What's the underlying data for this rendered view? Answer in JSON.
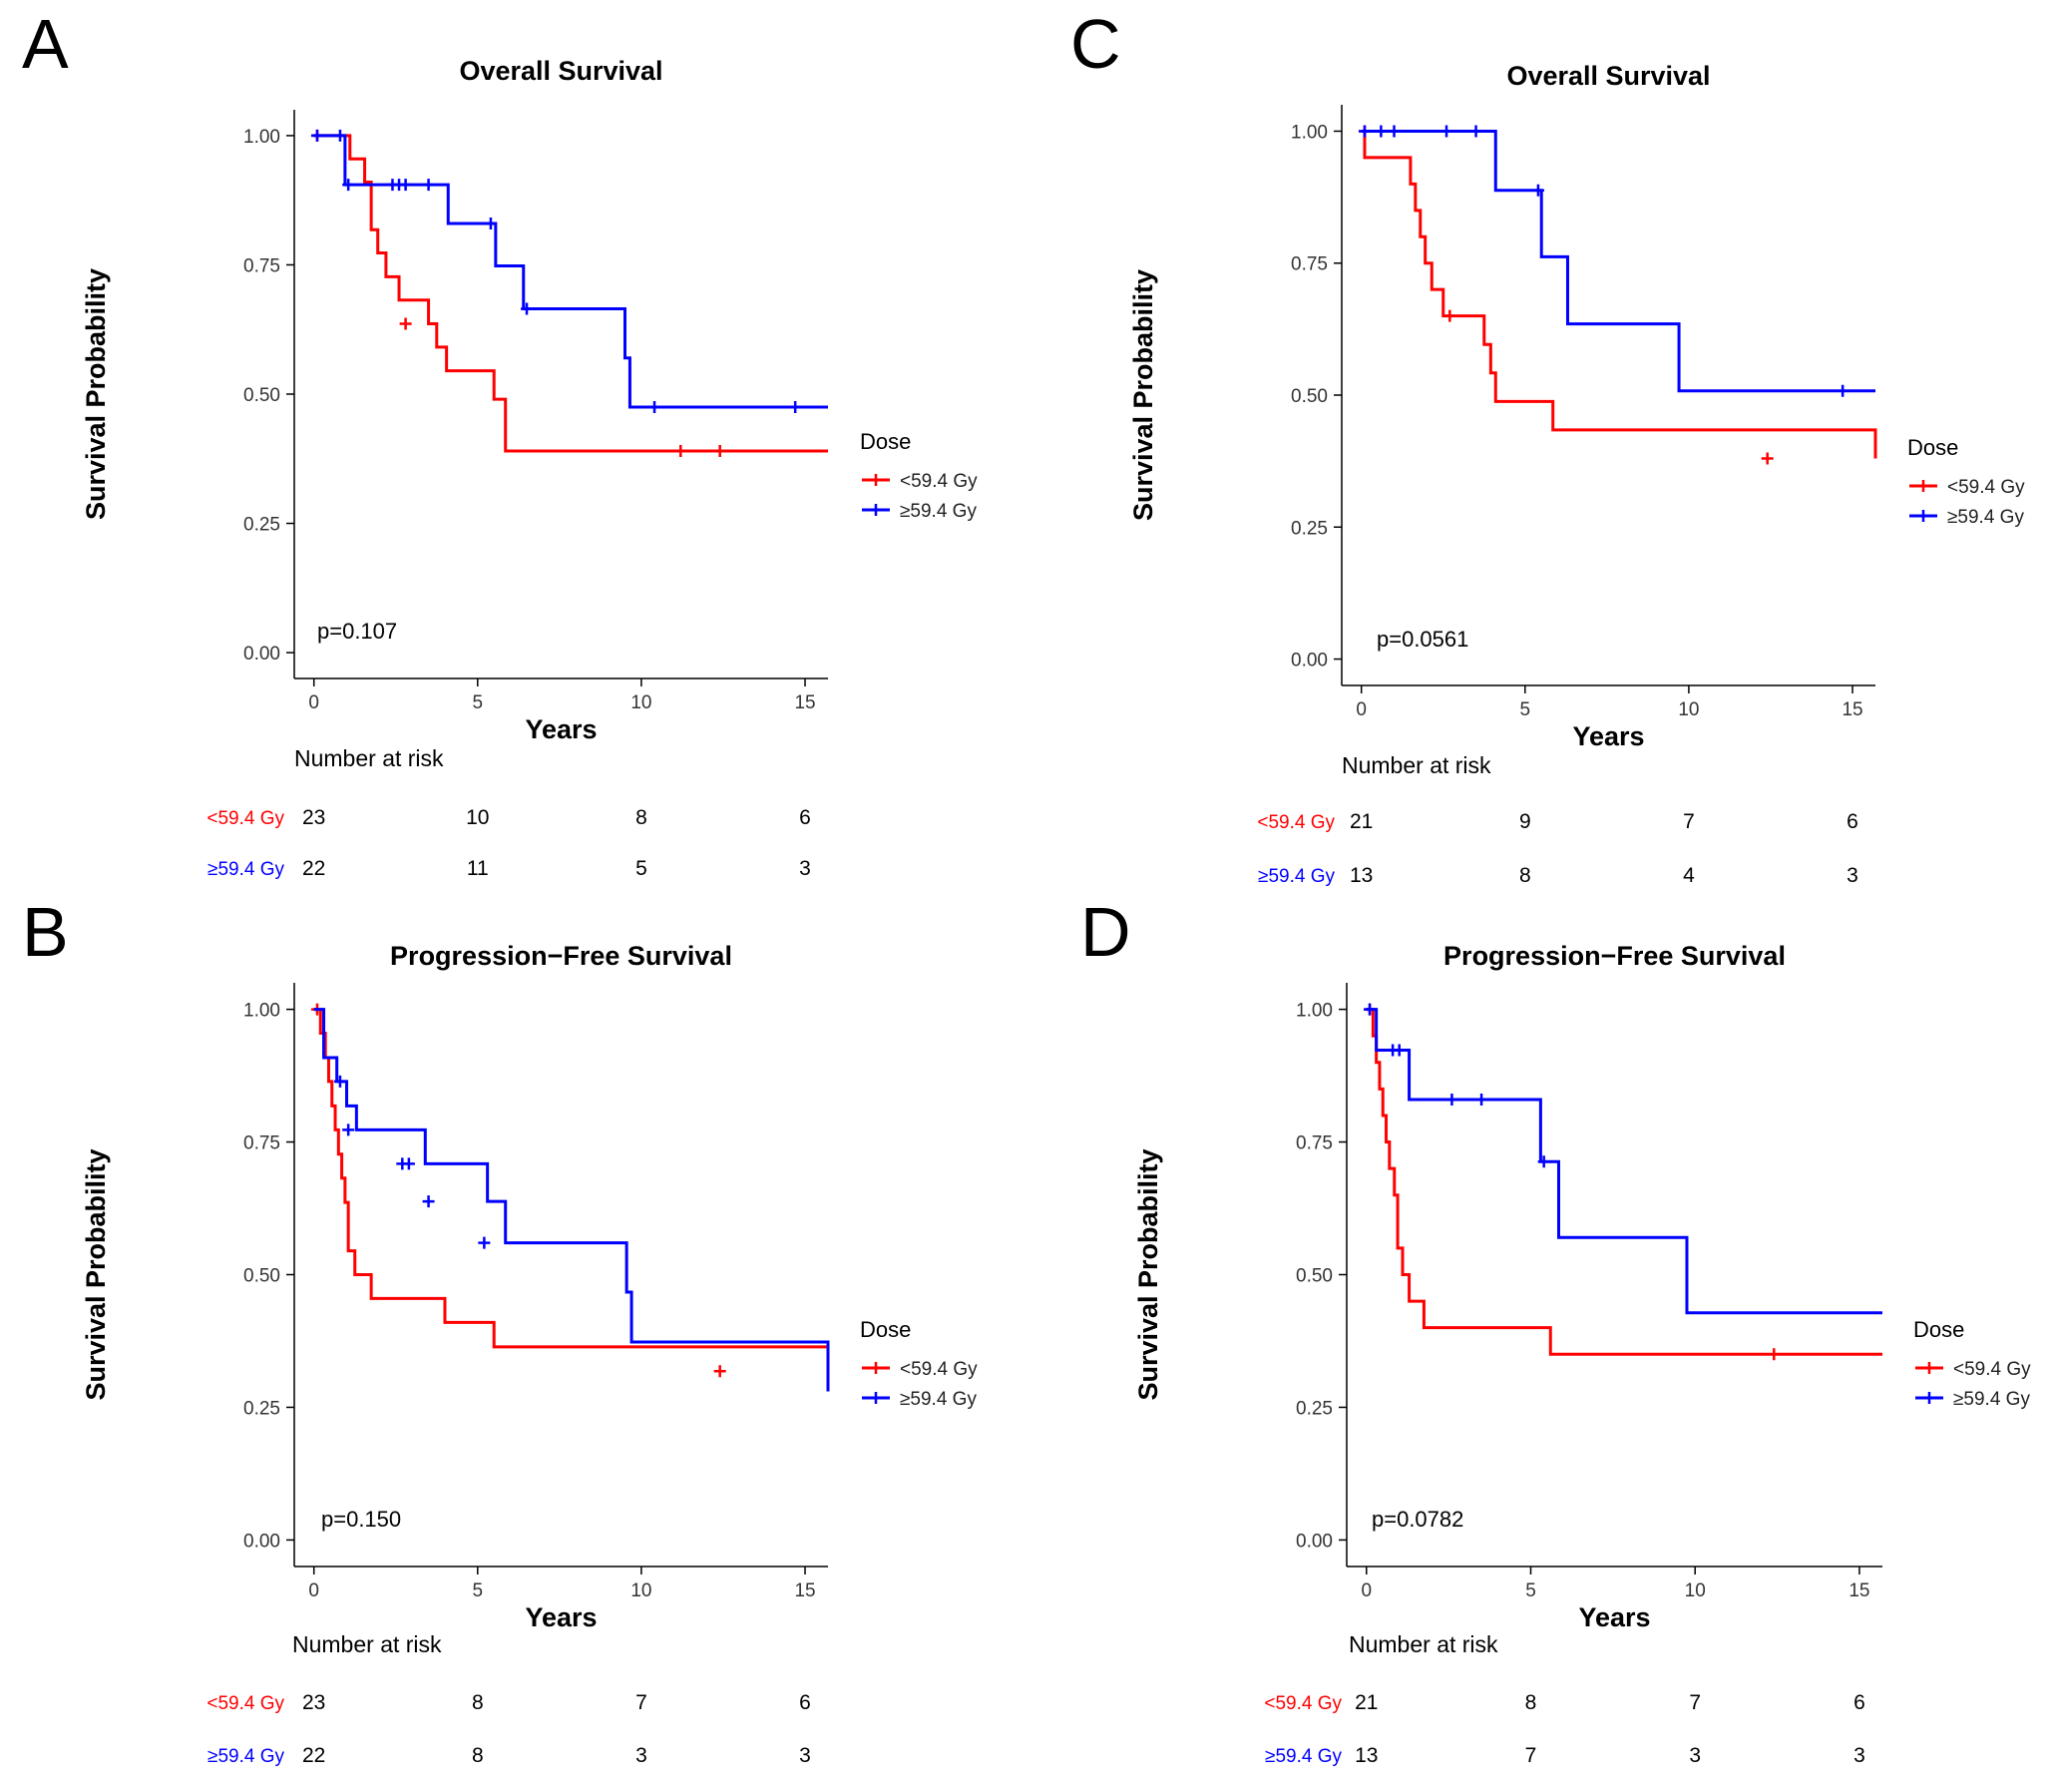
{
  "colors": {
    "red": "#ff0000",
    "blue": "#0000ff",
    "axis": "#000000"
  },
  "common": {
    "xlabel": "Years",
    "ylabel": "Survival Probability",
    "legend_title": "Dose",
    "legend_labels": [
      "<59.4 Gy",
      "≥59.4 Gy"
    ],
    "risk_title": "Number at risk",
    "risk_labels": [
      "<59.4 Gy",
      "≥59.4 Gy"
    ],
    "xticks": [
      "0",
      "5",
      "10",
      "15"
    ],
    "yticks": [
      "0.00",
      "0.25",
      "0.50",
      "0.75",
      "1.00"
    ]
  },
  "chart_data": [
    {
      "panel": "A",
      "type": "line",
      "title": "Overall Survival",
      "xlabel": "Years",
      "ylabel": "Survival Probability",
      "xlim": [
        -0.6,
        15.7
      ],
      "ylim": [
        -0.05,
        1.05
      ],
      "pvalue": "p=0.107",
      "series": [
        {
          "name": "<59.4 Gy",
          "color": "#ff0000",
          "x": [
            0,
            1.1,
            1.55,
            1.75,
            1.95,
            2.2,
            2.6,
            3.5,
            3.75,
            4.05,
            5.5,
            5.85,
            15.7
          ],
          "y": [
            1.0,
            0.955,
            0.91,
            0.818,
            0.773,
            0.727,
            0.682,
            0.636,
            0.591,
            0.545,
            0.49,
            0.39,
            0.39
          ],
          "censor_x": [
            0.1,
            2.8,
            11.2,
            12.4
          ],
          "censor_y": [
            1.0,
            0.636,
            0.39,
            0.39
          ]
        },
        {
          "name": "≥59.4 Gy",
          "color": "#0000ff",
          "x": [
            0,
            0.95,
            4.1,
            5.55,
            6.4,
            9.5,
            9.65,
            15.7
          ],
          "y": [
            1.0,
            0.905,
            0.83,
            0.748,
            0.665,
            0.57,
            0.475,
            0.475
          ],
          "censor_x": [
            0.1,
            0.8,
            1.05,
            2.4,
            2.6,
            2.8,
            3.5,
            5.4,
            6.5,
            10.4,
            14.7
          ],
          "censor_y": [
            1.0,
            1.0,
            0.905,
            0.905,
            0.905,
            0.905,
            0.905,
            0.83,
            0.665,
            0.475,
            0.475
          ]
        }
      ],
      "risk_times": [
        0,
        5,
        10,
        15
      ],
      "risk_table": [
        [
          23,
          10,
          8,
          6
        ],
        [
          22,
          11,
          5,
          3
        ]
      ]
    },
    {
      "panel": "B",
      "type": "line",
      "title": "Progression−Free Survival",
      "xlabel": "Years",
      "ylabel": "Survival Probability",
      "xlim": [
        -0.6,
        15.7
      ],
      "ylim": [
        -0.05,
        1.05
      ],
      "pvalue": "p=0.150",
      "series": [
        {
          "name": "<59.4 Gy",
          "color": "#ff0000",
          "x": [
            0,
            0.2,
            0.35,
            0.45,
            0.55,
            0.65,
            0.75,
            0.85,
            0.95,
            1.05,
            1.25,
            1.75,
            4.0,
            5.5,
            15.7
          ],
          "y": [
            1.0,
            0.955,
            0.909,
            0.864,
            0.818,
            0.773,
            0.727,
            0.682,
            0.636,
            0.545,
            0.5,
            0.455,
            0.41,
            0.364,
            0.318
          ],
          "censor_x": [
            0.1,
            12.4
          ],
          "censor_y": [
            1.0,
            0.318
          ]
        },
        {
          "name": "≥59.4 Gy",
          "color": "#0000ff",
          "x": [
            0,
            0.3,
            0.7,
            1.0,
            1.3,
            3.4,
            5.3,
            5.85,
            9.55,
            9.7,
            15.7
          ],
          "y": [
            1.0,
            0.909,
            0.864,
            0.818,
            0.773,
            0.709,
            0.638,
            0.56,
            0.467,
            0.373,
            0.28
          ],
          "censor_x": [
            0.8,
            1.05,
            2.7,
            2.9,
            3.5,
            5.2
          ],
          "censor_y": [
            0.864,
            0.773,
            0.709,
            0.709,
            0.638,
            0.56
          ]
        }
      ],
      "risk_times": [
        0,
        5,
        10,
        15
      ],
      "risk_table": [
        [
          23,
          8,
          7,
          6
        ],
        [
          22,
          8,
          3,
          3
        ]
      ]
    },
    {
      "panel": "C",
      "type": "line",
      "title": "Overall Survival",
      "xlabel": "Years",
      "ylabel": "Survival Probability",
      "xlim": [
        -0.6,
        15.7
      ],
      "ylim": [
        -0.05,
        1.05
      ],
      "pvalue": "p=0.0561",
      "series": [
        {
          "name": "<59.4 Gy",
          "color": "#ff0000",
          "x": [
            0,
            0.1,
            1.1,
            1.5,
            1.65,
            1.8,
            1.95,
            2.15,
            2.5,
            3.5,
            3.75,
            3.95,
            4.1,
            5.5,
            5.85,
            15.7
          ],
          "y": [
            1.0,
            0.95,
            0.95,
            0.9,
            0.85,
            0.8,
            0.75,
            0.7,
            0.65,
            0.65,
            0.596,
            0.542,
            0.488,
            0.488,
            0.434,
            0.38
          ],
          "censor_x": [
            0.1,
            2.7,
            12.4
          ],
          "censor_y": [
            1.0,
            0.65,
            0.38
          ]
        },
        {
          "name": "≥59.4 Gy",
          "color": "#0000ff",
          "x": [
            0,
            4.1,
            5.5,
            6.3,
            9.7,
            15.7
          ],
          "y": [
            1.0,
            0.888,
            0.762,
            0.635,
            0.508,
            0.508
          ],
          "censor_x": [
            0.1,
            0.6,
            1.0,
            2.6,
            3.5,
            5.4,
            14.7
          ],
          "censor_y": [
            1.0,
            1.0,
            1.0,
            1.0,
            1.0,
            0.888,
            0.508
          ]
        }
      ],
      "risk_times": [
        0,
        5,
        10,
        15
      ],
      "risk_table": [
        [
          21,
          9,
          7,
          6
        ],
        [
          13,
          8,
          4,
          3
        ]
      ]
    },
    {
      "panel": "D",
      "type": "line",
      "title": "Progression−Free Survival",
      "xlabel": "Years",
      "ylabel": "Survival Probability",
      "xlim": [
        -0.6,
        15.7
      ],
      "ylim": [
        -0.05,
        1.05
      ],
      "pvalue": "p=0.0782",
      "series": [
        {
          "name": "<59.4 Gy",
          "color": "#ff0000",
          "x": [
            0,
            0.2,
            0.3,
            0.4,
            0.5,
            0.6,
            0.7,
            0.85,
            0.95,
            1.1,
            1.3,
            1.75,
            5.6,
            15.7
          ],
          "y": [
            1.0,
            0.95,
            0.9,
            0.85,
            0.8,
            0.75,
            0.7,
            0.65,
            0.55,
            0.5,
            0.45,
            0.4,
            0.35,
            0.35
          ],
          "censor_x": [
            0.1,
            12.4
          ],
          "censor_y": [
            1.0,
            0.35
          ]
        },
        {
          "name": "≥59.4 Gy",
          "color": "#0000ff",
          "x": [
            0,
            0.3,
            1.3,
            5.3,
            5.85,
            9.75,
            15.7
          ],
          "y": [
            1.0,
            0.923,
            0.83,
            0.713,
            0.57,
            0.428,
            0.428
          ],
          "censor_x": [
            0.1,
            0.8,
            1.0,
            2.6,
            3.5,
            5.4
          ],
          "censor_y": [
            1.0,
            0.923,
            0.923,
            0.83,
            0.83,
            0.713
          ]
        }
      ],
      "risk_times": [
        0,
        5,
        10,
        15
      ],
      "risk_table": [
        [
          21,
          8,
          7,
          6
        ],
        [
          13,
          7,
          3,
          3
        ]
      ]
    }
  ]
}
